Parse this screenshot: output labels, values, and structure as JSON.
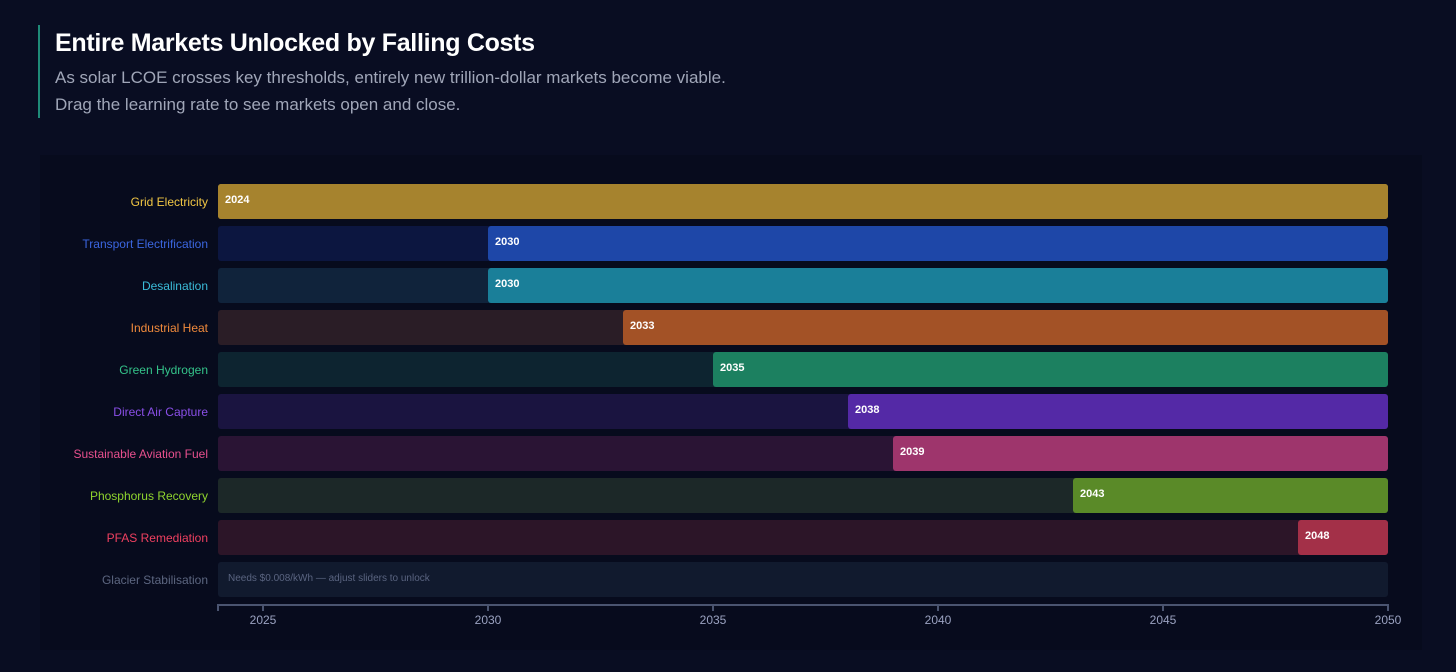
{
  "header": {
    "title": "Entire Markets Unlocked by Falling Costs",
    "subtitle_line1": "As solar LCOE crosses key thresholds, entirely new trillion-dollar markets become viable.",
    "subtitle_line2": "Drag the learning rate to see markets open and close."
  },
  "chart_data": {
    "type": "bar",
    "orientation": "horizontal",
    "xlim": [
      2024,
      2050
    ],
    "xticks": [
      2025,
      2030,
      2035,
      2040,
      2045,
      2050
    ],
    "categories": [
      "Grid Electricity",
      "Transport Electrification",
      "Desalination",
      "Industrial Heat",
      "Green Hydrogen",
      "Direct Air Capture",
      "Sustainable Aviation Fuel",
      "Phosphorus Recovery",
      "PFAS Remediation",
      "Glacier Stabilisation"
    ],
    "unlock_year": [
      2024,
      2030,
      2030,
      2033,
      2035,
      2038,
      2039,
      2043,
      2048,
      null
    ],
    "value_labels": [
      "2024",
      "2030",
      "2030",
      "2033",
      "2035",
      "2038",
      "2039",
      "2043",
      "2048",
      null
    ],
    "locked_note": "Needs $0.008/kWh — adjust sliders to unlock",
    "colors": {
      "label": [
        "#f2c744",
        "#3b66e0",
        "#3bbcd9",
        "#f08a3c",
        "#34c38a",
        "#8a4fe8",
        "#e8508e",
        "#8fd42e",
        "#ef4060",
        "#5c6680"
      ],
      "bar": [
        "#a6832e",
        "#1e47a8",
        "#1a7f99",
        "#a35226",
        "#1c8060",
        "#5429a6",
        "#9e356c",
        "#5a8a28",
        "#a33048",
        null
      ],
      "track": [
        "#a6832e",
        "#0c1640",
        "#10233b",
        "#2a1d26",
        "#0d2430",
        "#1a1440",
        "#2a1434",
        "#1c2828",
        "#2c1528",
        "#111a2e"
      ]
    }
  }
}
